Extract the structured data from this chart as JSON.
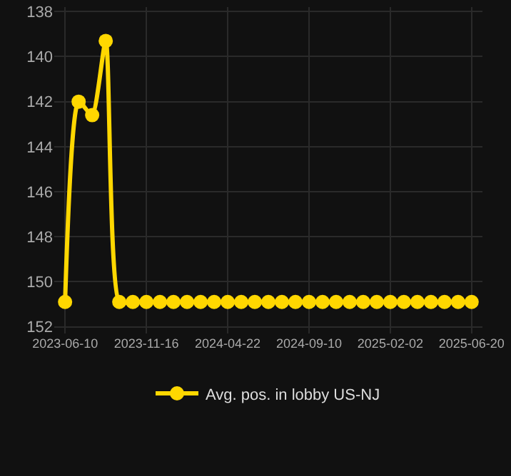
{
  "chart_data": {
    "type": "line",
    "categories": [
      "2023-06-10",
      null,
      null,
      null,
      null,
      null,
      "2023-11-16",
      null,
      null,
      null,
      null,
      null,
      "2024-04-22",
      null,
      null,
      null,
      null,
      null,
      "2024-09-10",
      null,
      null,
      null,
      null,
      null,
      "2025-02-02",
      null,
      null,
      null,
      null,
      null,
      "2025-06-20"
    ],
    "series": [
      {
        "name": "Avg. pos. in lobby US-NJ",
        "color": "#ffd700",
        "values": [
          150.9,
          142,
          142.6,
          139.3,
          150.9,
          150.9,
          150.9,
          150.9,
          150.9,
          150.9,
          150.9,
          150.9,
          150.9,
          150.9,
          150.9,
          150.9,
          150.9,
          150.9,
          150.9,
          150.9,
          150.9,
          150.9,
          150.9,
          150.9,
          150.9,
          150.9,
          150.9,
          150.9,
          150.9,
          150.9,
          150.9
        ]
      }
    ],
    "ylim": [
      152.3,
      137.8
    ],
    "yticks": [
      138,
      140,
      142,
      144,
      146,
      148,
      150,
      152
    ],
    "grid": true,
    "legend": "bottom",
    "marker": "circle",
    "line_style": "solid"
  }
}
